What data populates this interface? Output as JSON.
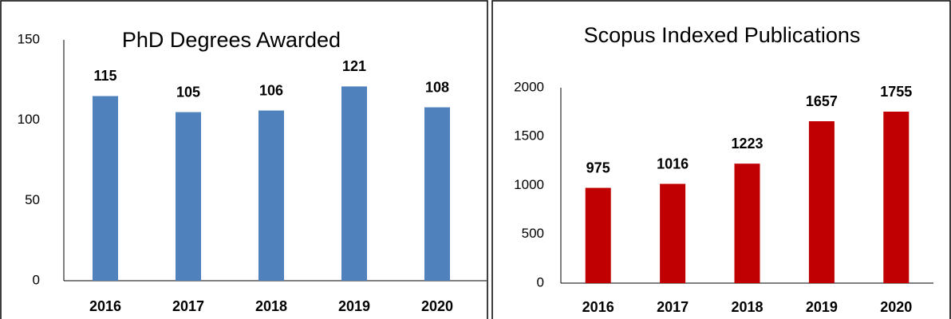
{
  "chart_data": [
    {
      "type": "bar",
      "title": "PhD Degrees Awarded",
      "categories": [
        "2016",
        "2017",
        "2018",
        "2019",
        "2020"
      ],
      "values": [
        115,
        105,
        106,
        121,
        108
      ],
      "color": "#4f81bd",
      "ylim": [
        0,
        150
      ],
      "yticks": [
        0,
        50,
        100,
        150
      ],
      "grid": false
    },
    {
      "type": "bar",
      "title": "Scopus Indexed Publications",
      "categories": [
        "2016",
        "2017",
        "2018",
        "2019",
        "2020"
      ],
      "values": [
        975,
        1016,
        1223,
        1657,
        1755
      ],
      "color": "#c00000",
      "ylim": [
        0,
        2000
      ],
      "yticks": [
        0,
        500,
        1000,
        1500,
        2000
      ],
      "grid": false
    }
  ]
}
